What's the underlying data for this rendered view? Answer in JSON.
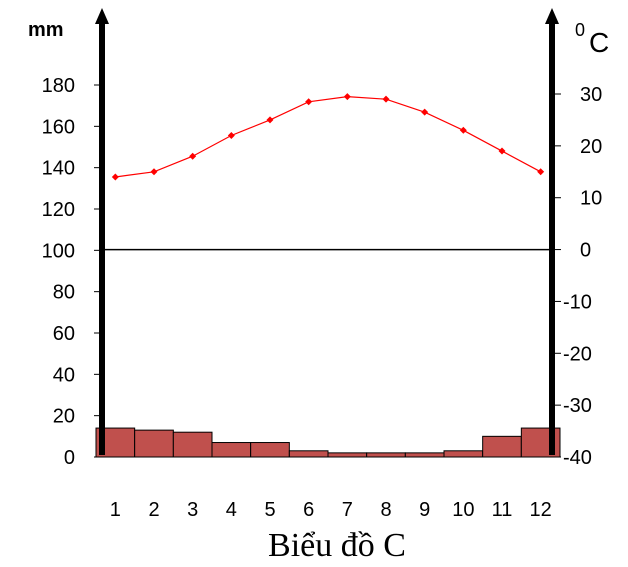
{
  "chart_data": {
    "type": "bar+line",
    "title": "Biểu đồ C",
    "categories": [
      "1",
      "2",
      "3",
      "4",
      "5",
      "6",
      "7",
      "8",
      "9",
      "10",
      "11",
      "12"
    ],
    "precipitation": {
      "unit_label": "mm",
      "values": [
        14,
        13,
        12,
        7,
        7,
        3,
        2,
        2,
        2,
        3,
        10,
        14
      ],
      "ylim": [
        0,
        180
      ],
      "ticks": [
        "0",
        "20",
        "40",
        "60",
        "80",
        "100",
        "120",
        "140",
        "160",
        "180"
      ],
      "bar_color": "#c0504d"
    },
    "temperature": {
      "unit_label_sup": "0",
      "unit_label": "C",
      "values": [
        14,
        15,
        18,
        22,
        25,
        28.5,
        29.5,
        29,
        26.5,
        23,
        19,
        15
      ],
      "ylim": [
        -40,
        30
      ],
      "ticks": [
        "-40",
        "-30",
        "-20",
        "-10",
        "0",
        "10",
        "20",
        "30"
      ],
      "line_color": "#ff0000"
    },
    "grid": false
  }
}
